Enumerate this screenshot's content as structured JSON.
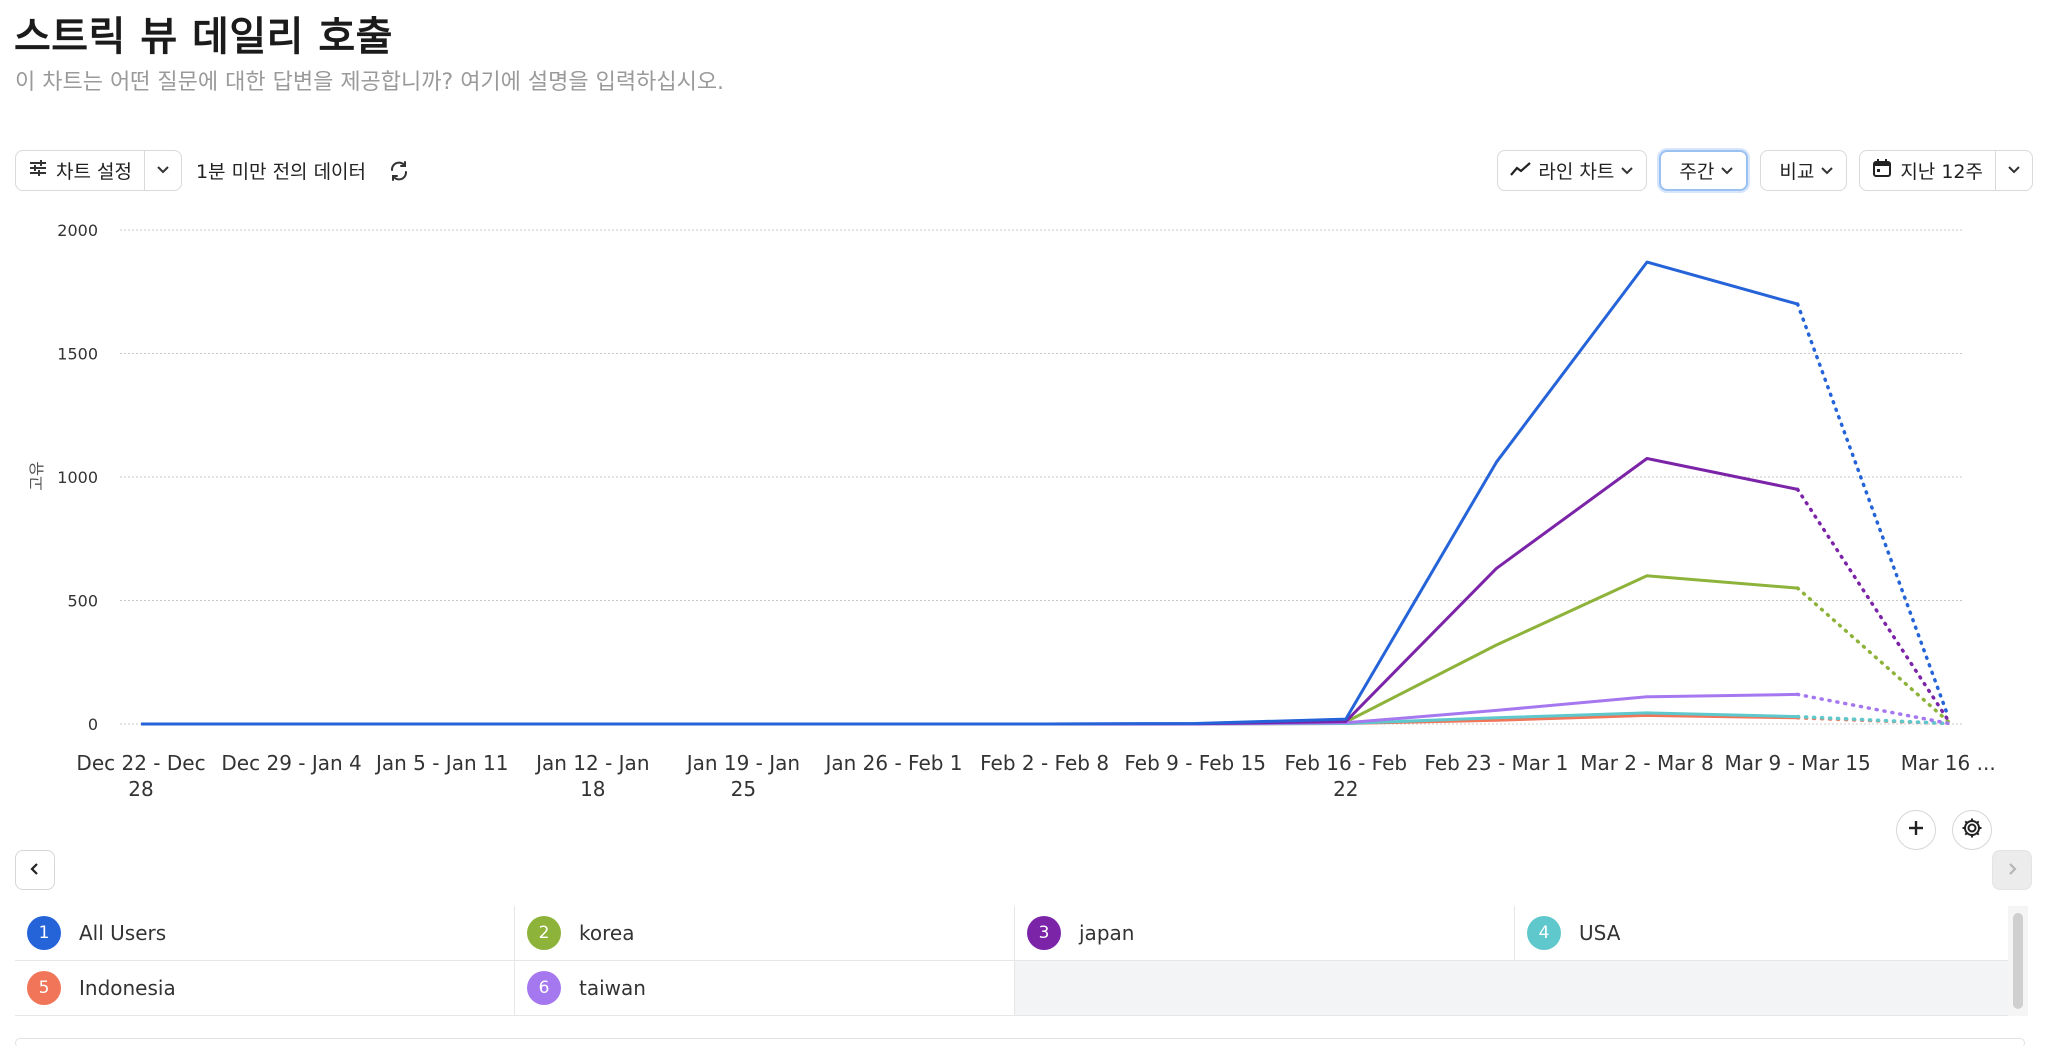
{
  "header": {
    "title": "스트릭 뷰 데일리 호출",
    "subtitle": "이 차트는 어떤 질문에 대한 답변을 제공합니까? 여기에 설명을 입력하십시오."
  },
  "toolbar": {
    "chart_settings_label": "차트 설정",
    "updated_text": "1분 미만 전의 데이터",
    "chart_type_label": "라인 차트",
    "interval_label": "주간",
    "compare_label": "비교",
    "date_range_label": "지난 12주"
  },
  "colors": {
    "accent": "#2563d9",
    "series": [
      "#2563d9",
      "#8db33a",
      "#7b24a8",
      "#5ec8cc",
      "#f07559",
      "#a678f0"
    ]
  },
  "chart_data": {
    "type": "line",
    "ylabel": "고유",
    "ylim": [
      0,
      2000
    ],
    "yticks": [
      0,
      500,
      1000,
      1500,
      2000
    ],
    "grid": true,
    "categories": [
      "Dec 22 - Dec 28",
      "Dec 29 - Jan 4",
      "Jan 5 - Jan 11",
      "Jan 12 - Jan 18",
      "Jan 19 - Jan 25",
      "Jan 26 - Feb 1",
      "Feb 2 - Feb 8",
      "Feb 9 - Feb 15",
      "Feb 16 - Feb 22",
      "Feb 23 - Mar 1",
      "Mar 2 - Mar 8",
      "Mar 9 - Mar 15",
      "Mar 16 ..."
    ],
    "tick_labels": [
      [
        "Dec 22 - Dec",
        "28"
      ],
      [
        "Dec 29 - Jan 4"
      ],
      [
        "Jan 5 - Jan 11"
      ],
      [
        "Jan 12 - Jan",
        "18"
      ],
      [
        "Jan 19 - Jan",
        "25"
      ],
      [
        "Jan 26 - Feb 1"
      ],
      [
        "Feb 2 - Feb 8"
      ],
      [
        "Feb 9 - Feb 15"
      ],
      [
        "Feb 16 - Feb",
        "22"
      ],
      [
        "Feb 23 - Mar 1"
      ],
      [
        "Mar 2 - Mar 8"
      ],
      [
        "Mar 9 - Mar 15"
      ],
      [
        "Mar 16 ..."
      ]
    ],
    "incomplete_from_index": 11,
    "series": [
      {
        "name": "All Users",
        "values": [
          0,
          0,
          0,
          0,
          0,
          0,
          0,
          2,
          20,
          1060,
          1870,
          1700,
          30
        ]
      },
      {
        "name": "korea",
        "values": [
          0,
          0,
          0,
          0,
          0,
          0,
          0,
          0,
          8,
          320,
          600,
          550,
          10
        ]
      },
      {
        "name": "japan",
        "values": [
          0,
          0,
          0,
          0,
          0,
          0,
          0,
          1,
          10,
          630,
          1075,
          950,
          15
        ]
      },
      {
        "name": "USA",
        "values": [
          0,
          0,
          0,
          0,
          0,
          0,
          0,
          0,
          2,
          25,
          45,
          30,
          2
        ]
      },
      {
        "name": "Indonesia",
        "values": [
          0,
          0,
          0,
          0,
          0,
          0,
          0,
          0,
          2,
          15,
          35,
          25,
          2
        ]
      },
      {
        "name": "taiwan",
        "values": [
          0,
          0,
          0,
          0,
          0,
          0,
          0,
          0,
          5,
          55,
          110,
          120,
          3
        ]
      }
    ]
  },
  "legend": [
    {
      "num": "1",
      "name": "All Users"
    },
    {
      "num": "2",
      "name": "korea"
    },
    {
      "num": "3",
      "name": "japan"
    },
    {
      "num": "4",
      "name": "USA"
    },
    {
      "num": "5",
      "name": "Indonesia"
    },
    {
      "num": "6",
      "name": "taiwan"
    }
  ]
}
